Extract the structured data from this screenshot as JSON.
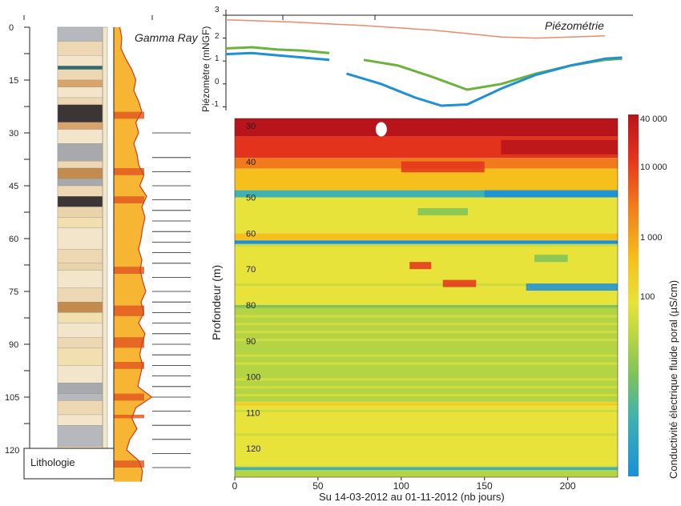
{
  "chart_data": [
    {
      "type": "line",
      "panel": "log",
      "title": "",
      "y_ticks": [
        "0",
        "15",
        "30",
        "45",
        "60",
        "75",
        "90",
        "105",
        "120"
      ],
      "curve_label": "Gamma Ray",
      "box_label": "Lithologie",
      "ylim": [
        0,
        130
      ],
      "gamma_ray": {
        "depth": [
          0,
          3,
          6,
          9,
          12,
          15,
          18,
          21,
          24,
          27,
          30,
          33,
          36,
          39,
          42,
          45,
          48,
          51,
          54,
          57,
          60,
          63,
          66,
          69,
          72,
          75,
          78,
          81,
          84,
          87,
          90,
          93,
          96,
          99,
          102,
          105,
          108,
          111,
          114,
          117,
          120,
          123,
          126,
          129
        ],
        "value": [
          0.15,
          0.2,
          0.18,
          0.3,
          0.45,
          0.55,
          0.5,
          0.62,
          0.7,
          0.55,
          0.62,
          0.5,
          0.58,
          0.62,
          0.75,
          0.65,
          0.82,
          0.7,
          0.78,
          0.72,
          0.68,
          0.62,
          0.7,
          0.66,
          0.72,
          0.8,
          0.68,
          0.75,
          0.62,
          0.78,
          0.7,
          0.65,
          0.72,
          0.66,
          0.6,
          0.95,
          0.55,
          0.45,
          0.58,
          0.4,
          0.32,
          0.62,
          0.72,
          0.68
        ]
      }
    },
    {
      "type": "line",
      "panel": "piezometry",
      "title": "Piézométrie",
      "ylabel": "Piézomètre (mNGF)",
      "ylim": [
        -1.5,
        3
      ],
      "y_ticks": [
        "3",
        "2",
        "1",
        "0",
        "-1"
      ],
      "xlim": [
        0,
        230
      ],
      "series": [
        {
          "color": "#ec8a6a",
          "x": [
            0,
            20,
            40,
            60,
            80,
            100,
            120,
            140,
            160,
            180,
            200,
            220
          ],
          "y": [
            2.8,
            2.75,
            2.7,
            2.62,
            2.55,
            2.45,
            2.35,
            2.2,
            2.05,
            2.0,
            2.05,
            2.1
          ]
        },
        {
          "color": "#6cb33e",
          "x": [
            0,
            15,
            30,
            45,
            60
          ],
          "y": [
            1.55,
            1.6,
            1.5,
            1.45,
            1.35
          ]
        },
        {
          "color": "#6cb33e",
          "x": [
            80,
            100,
            120,
            140,
            160,
            180,
            200,
            220,
            230
          ],
          "y": [
            1.05,
            0.8,
            0.3,
            -0.25,
            0.0,
            0.45,
            0.8,
            1.05,
            1.1
          ]
        },
        {
          "color": "#1f8fd6",
          "x": [
            0,
            15,
            30,
            45,
            60
          ],
          "y": [
            1.3,
            1.35,
            1.25,
            1.15,
            1.05
          ]
        },
        {
          "color": "#1f8fd6",
          "x": [
            70,
            90,
            110,
            125,
            140,
            160,
            180,
            200,
            220,
            230
          ],
          "y": [
            0.45,
            0.0,
            -0.6,
            -0.95,
            -0.9,
            -0.2,
            0.4,
            0.8,
            1.1,
            1.15
          ]
        }
      ]
    },
    {
      "type": "heatmap",
      "panel": "conductivity",
      "title": "",
      "xlabel": "Su 14-03-2012 au 01-11-2012 (nb jours)",
      "ylabel": "Profondeur (m)",
      "xlim": [
        0,
        230
      ],
      "ylim": [
        28,
        128
      ],
      "x_ticks": [
        "0",
        "50",
        "100",
        "150",
        "200"
      ],
      "y_ticks": [
        "30",
        "40",
        "50",
        "60",
        "70",
        "80",
        "90",
        "100",
        "110",
        "120"
      ],
      "colorbar": {
        "label": "Conductivité électrique fluide poral (µS/cm)",
        "ticks": [
          "40 000",
          "10 000",
          "1 000",
          "100"
        ],
        "colors": [
          "#b8141b",
          "#e4331c",
          "#f07a1c",
          "#f6c01c",
          "#e7e33a",
          "#b5d445",
          "#7dc35c",
          "#3fb1b0",
          "#1b8fd9"
        ]
      },
      "depth_bands": [
        {
          "from": 28,
          "to": 33,
          "value": 40000
        },
        {
          "from": 33,
          "to": 39,
          "value": 20000
        },
        {
          "from": 39,
          "to": 42,
          "value": 8000
        },
        {
          "from": 42,
          "to": 48,
          "value": 2500
        },
        {
          "from": 48,
          "to": 50,
          "value": 80
        },
        {
          "from": 50,
          "to": 60,
          "value": 1500
        },
        {
          "from": 60,
          "to": 62,
          "value": 3000
        },
        {
          "from": 62,
          "to": 63,
          "value": 60
        },
        {
          "from": 63,
          "to": 80,
          "value": 900
        },
        {
          "from": 80,
          "to": 81,
          "value": 150
        },
        {
          "from": 81,
          "to": 107,
          "value": 700
        },
        {
          "from": 107,
          "to": 108,
          "value": 4000
        },
        {
          "from": 108,
          "to": 125,
          "value": 900
        },
        {
          "from": 125,
          "to": 126,
          "value": 100
        },
        {
          "from": 126,
          "to": 128,
          "value": 800
        }
      ]
    }
  ]
}
